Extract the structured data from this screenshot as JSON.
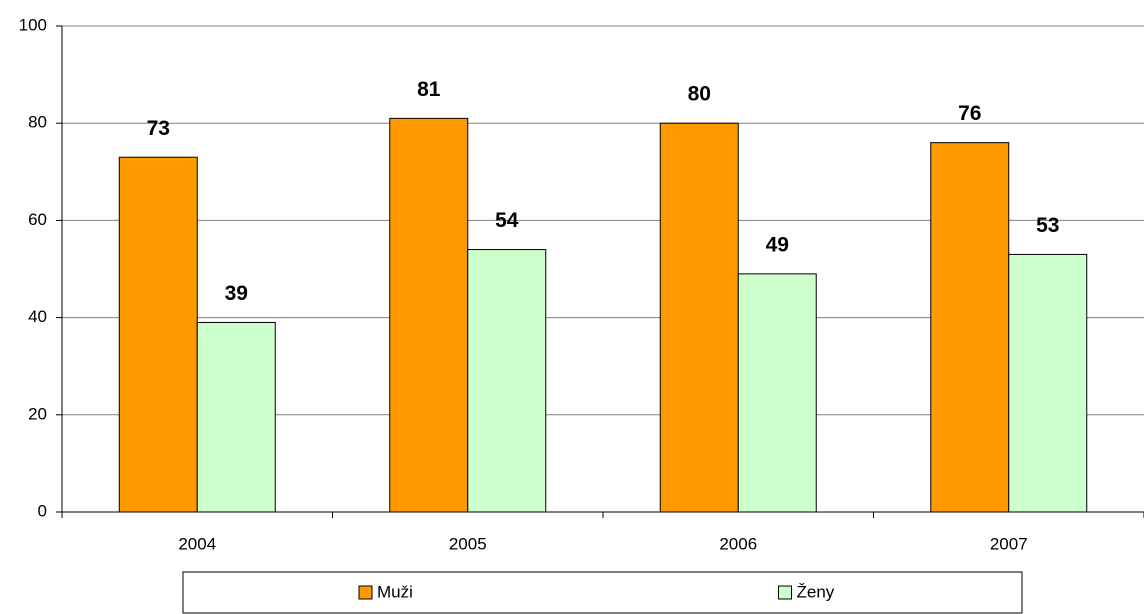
{
  "chart_data": {
    "type": "bar",
    "categories": [
      "2004",
      "2005",
      "2006",
      "2007"
    ],
    "series": [
      {
        "name": "Muži",
        "color": "#ff9900",
        "values": [
          73,
          81,
          80,
          76
        ]
      },
      {
        "name": "Ženy",
        "color": "#ccffcc",
        "values": [
          39,
          54,
          49,
          53
        ]
      }
    ],
    "ylim": [
      0,
      100
    ],
    "yticks": [
      0,
      20,
      40,
      60,
      80,
      100
    ],
    "grid": true,
    "legend": "bottom"
  }
}
